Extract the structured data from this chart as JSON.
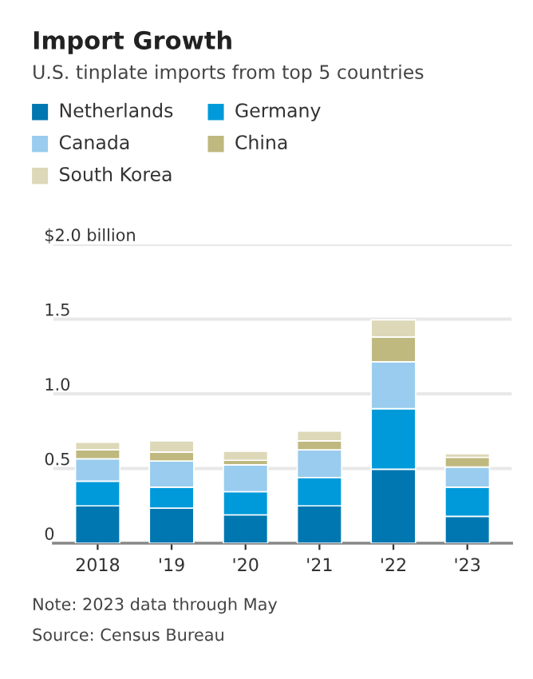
{
  "chart_data": {
    "type": "bar",
    "title": "Import Growth",
    "subtitle": "U.S. tinplate imports from top 5 countries",
    "categories": [
      "2018",
      "'19",
      "'20",
      "'21",
      "'22",
      "'23"
    ],
    "stacked": true,
    "series": [
      {
        "name": "Netherlands",
        "color": "#0077b0",
        "values": [
          0.25,
          0.235,
          0.19,
          0.25,
          0.495,
          0.18
        ]
      },
      {
        "name": "Germany",
        "color": "#009ada",
        "values": [
          0.165,
          0.14,
          0.155,
          0.19,
          0.405,
          0.195
        ]
      },
      {
        "name": "Canada",
        "color": "#99ccee",
        "values": [
          0.15,
          0.175,
          0.18,
          0.185,
          0.315,
          0.135
        ]
      },
      {
        "name": "China",
        "color": "#bfb87f",
        "values": [
          0.06,
          0.06,
          0.03,
          0.06,
          0.165,
          0.065
        ]
      },
      {
        "name": "South Korea",
        "color": "#ddd8b8",
        "values": [
          0.05,
          0.075,
          0.06,
          0.065,
          0.115,
          0.025
        ]
      }
    ],
    "ylim": [
      0,
      2.0
    ],
    "yticks": [
      0,
      0.5,
      {
        "value": 1.0,
        "label": "1.0"
      },
      1.5,
      {
        "value": 2.0,
        "label": "$2.0 billion"
      }
    ],
    "grid": "y",
    "legend": "top",
    "annotations": [
      "Note: 2023 data through May",
      "Source: Census Bureau"
    ]
  }
}
